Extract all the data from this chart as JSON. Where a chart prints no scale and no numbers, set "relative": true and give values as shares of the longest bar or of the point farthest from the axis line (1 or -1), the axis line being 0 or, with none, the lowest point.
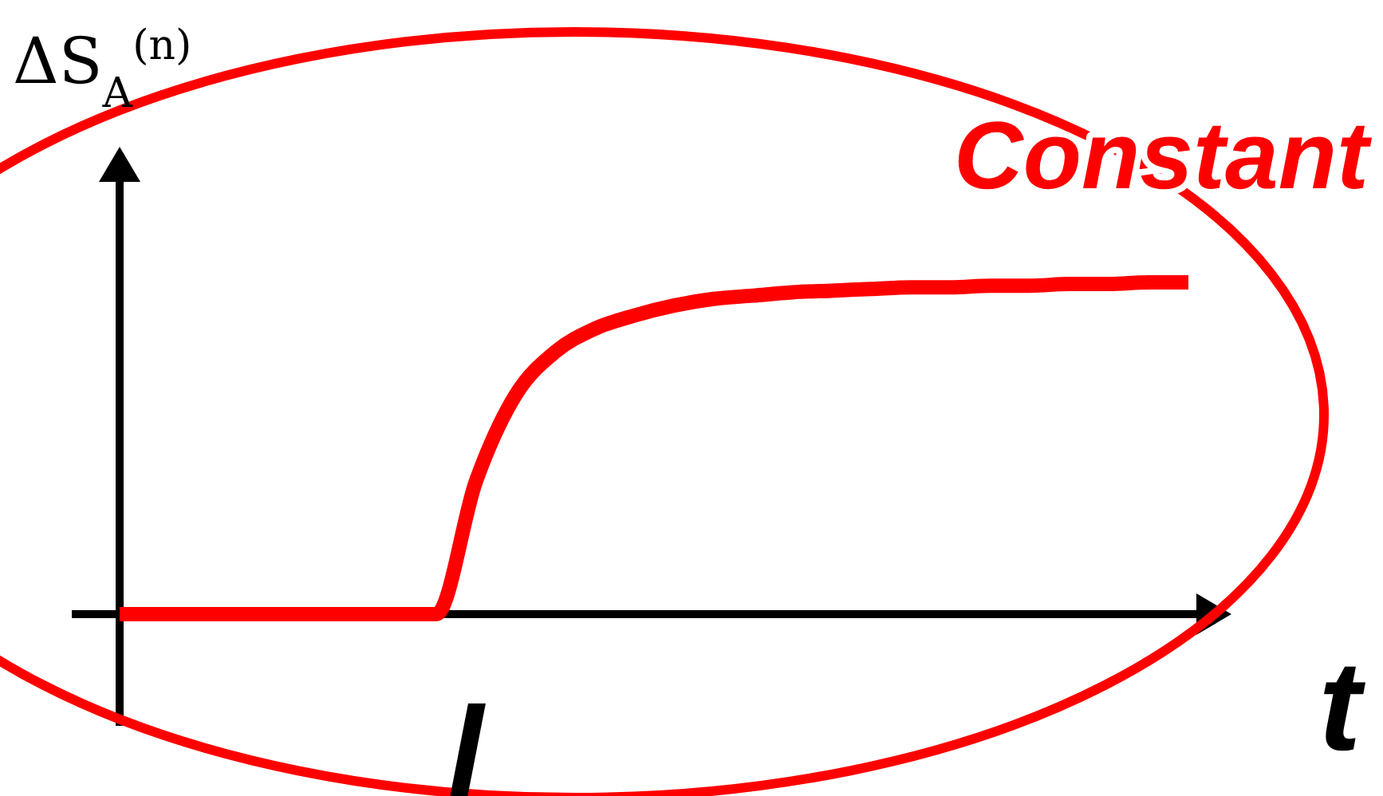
{
  "chart_data": {
    "type": "line",
    "relative": true,
    "ylabel": "ΔS$_{A}$$^{(n)}$",
    "xlabel": "t",
    "categories": [
      null,
      null,
      null,
      null,
      null,
      null,
      null,
      null,
      null,
      null,
      null,
      null,
      null,
      null,
      null,
      null,
      null,
      null,
      null,
      null,
      null,
      null,
      null,
      null,
      null,
      null,
      null,
      null
    ],
    "series": [
      {
        "color": "#ff0000",
        "values": [
          0,
          0,
          0,
          0,
          0,
          0,
          0,
          0,
          0,
          0.4,
          0.66,
          0.79,
          0.86,
          0.9,
          0.93,
          0.95,
          0.96,
          0.97,
          0.975,
          0.98,
          0.985,
          0.985,
          0.99,
          0.99,
          0.995,
          0.995,
          1,
          1
        ]
      }
    ],
    "annotations": [
      "Constant",
      "l"
    ],
    "line_style": "solid"
  }
}
